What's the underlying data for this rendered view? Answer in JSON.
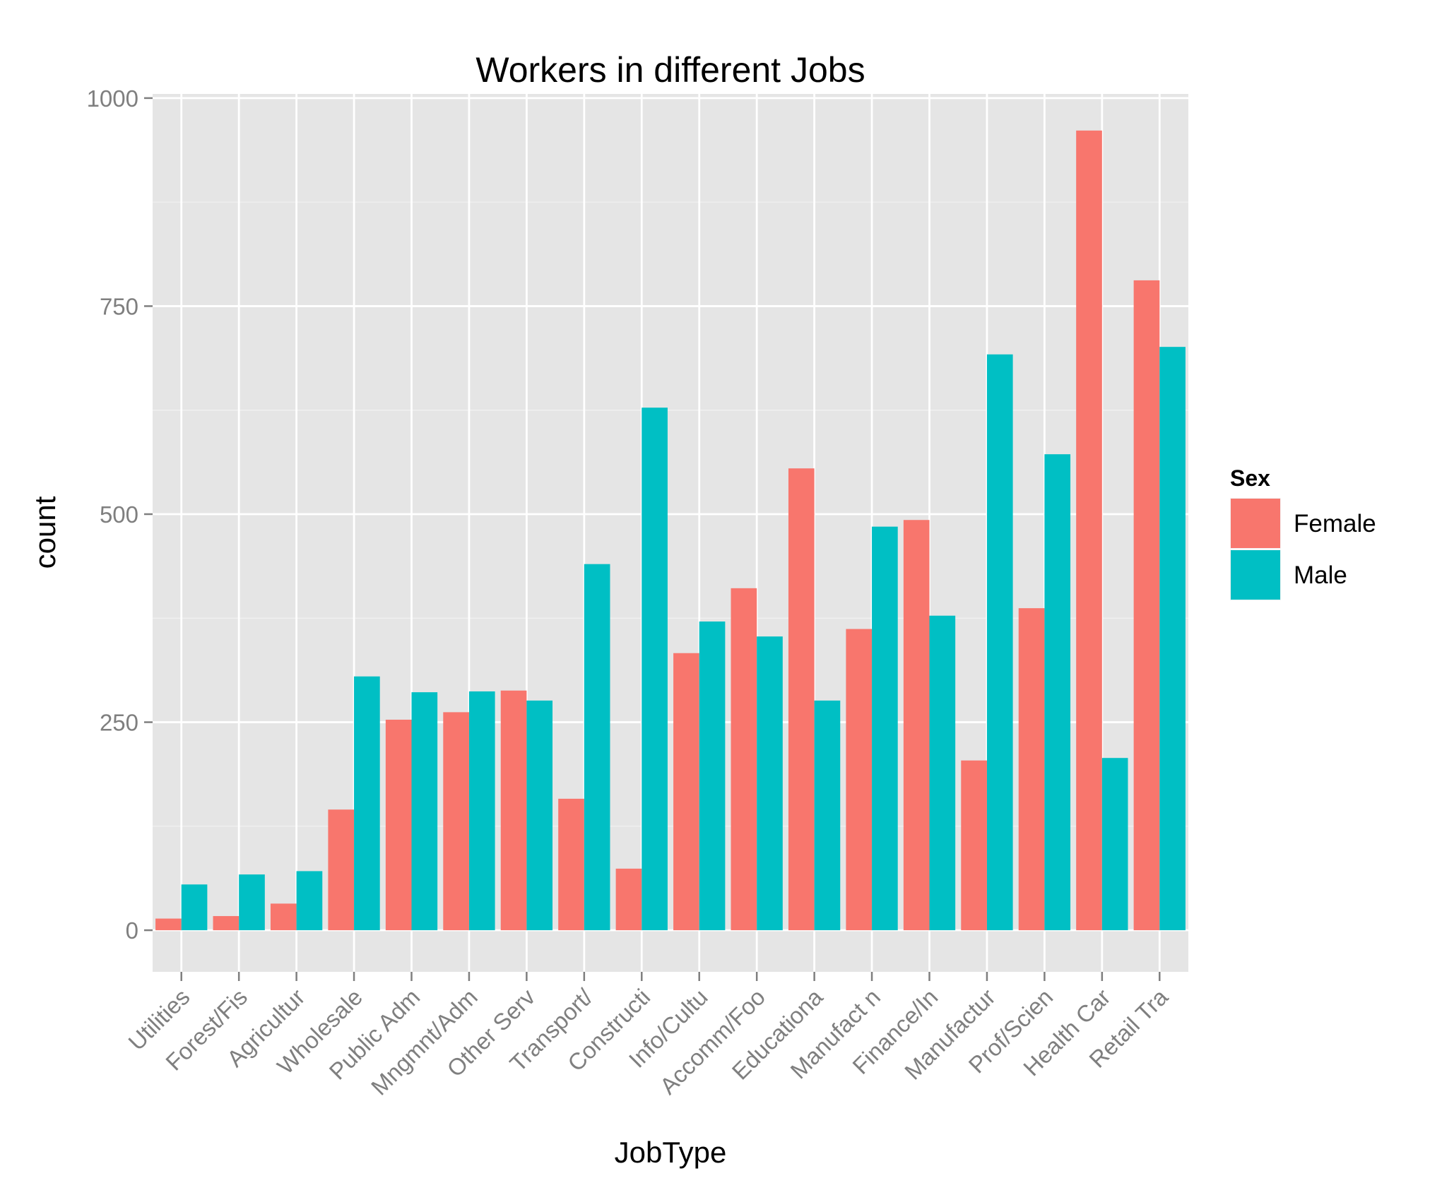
{
  "chart_data": {
    "type": "bar",
    "title": "Workers in different Jobs",
    "xlabel": "JobType",
    "ylabel": "count",
    "ylim": [
      -50,
      1005
    ],
    "yticks": [
      0,
      250,
      500,
      750,
      1000
    ],
    "grid": true,
    "legend": {
      "title": "Sex",
      "position": "right"
    },
    "categories": [
      "Utilities",
      "Forest/Fis",
      "Agricultur",
      "Wholesale",
      "Public Adm",
      "Mngmnt/Adm",
      "Other Serv",
      "Transport/",
      "Constructi",
      "Info/Cultu",
      "Accomm/Foo",
      "Educationa",
      "Manufact n",
      "Finance/In",
      "Manufactur",
      "Prof/Scien",
      "Health Car",
      "Retail Tra"
    ],
    "series": [
      {
        "name": "Female",
        "color": "#F8766D",
        "values": [
          14,
          17,
          32,
          145,
          253,
          262,
          288,
          158,
          74,
          333,
          411,
          555,
          362,
          493,
          204,
          387,
          961,
          781
        ]
      },
      {
        "name": "Male",
        "color": "#00BFC4",
        "values": [
          55,
          67,
          71,
          305,
          286,
          287,
          276,
          440,
          628,
          371,
          353,
          276,
          485,
          378,
          692,
          572,
          207,
          701
        ]
      }
    ]
  }
}
